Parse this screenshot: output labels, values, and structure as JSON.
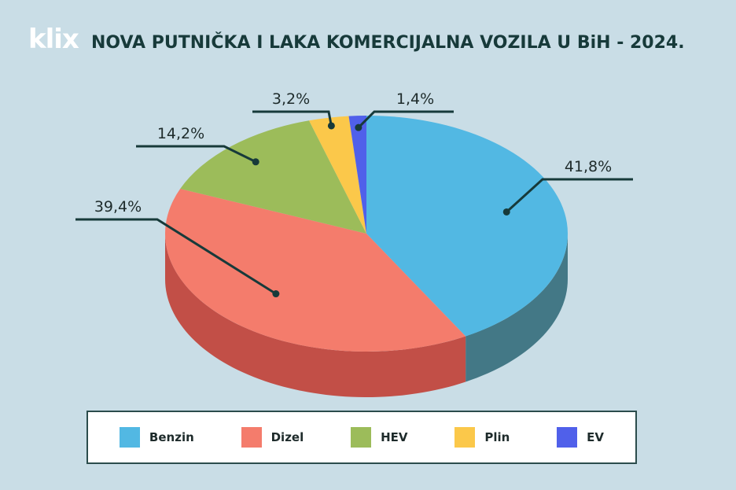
{
  "brand": {
    "logo_text": "klix"
  },
  "chart_data": {
    "type": "pie",
    "title": "NOVA PUTNIČKA I LAKA KOMERCIJALNA VOZILA U BiH - 2024.",
    "categories": [
      "Benzin",
      "Dizel",
      "HEV",
      "Plin",
      "EV"
    ],
    "values": [
      41.8,
      39.4,
      14.2,
      3.2,
      1.4
    ],
    "value_labels": [
      "41,8%",
      "39,4%",
      "14,2%",
      "3,2%",
      "1,4%"
    ],
    "colors": [
      "#52b8e3",
      "#f47c6c",
      "#9cbc5a",
      "#fbc84a",
      "#5060ea"
    ],
    "side_colors": [
      "#437886",
      "#c24f47",
      "#6f8a3c",
      "#c9a030",
      "#3a45b0"
    ],
    "legend_position": "bottom",
    "style": "3d"
  }
}
